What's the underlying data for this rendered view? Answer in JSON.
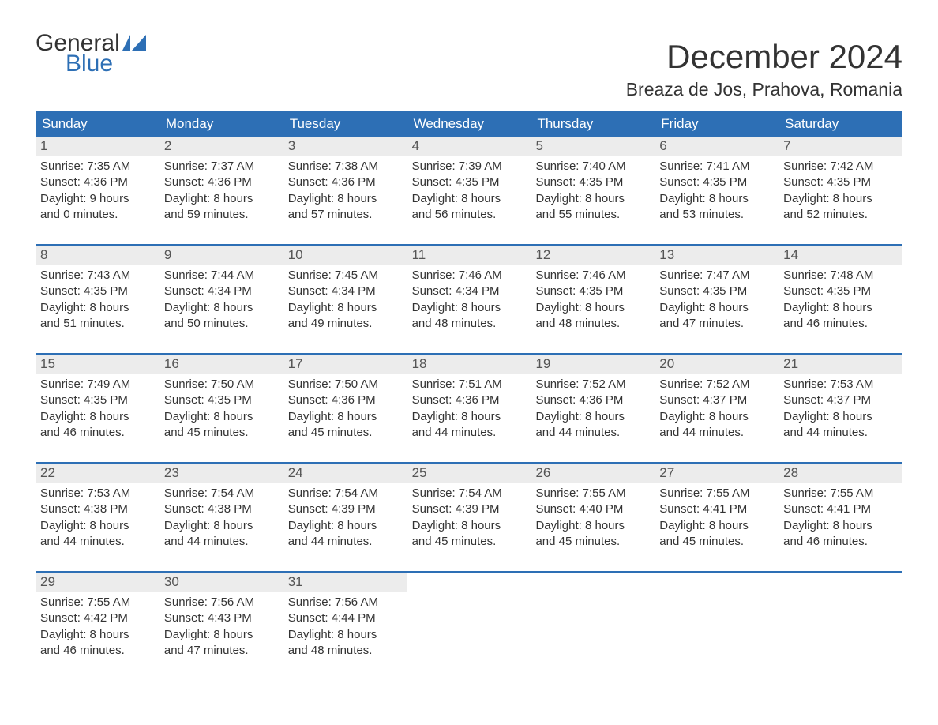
{
  "brand": {
    "line1": "General",
    "line2": "Blue"
  },
  "title": "December 2024",
  "location": "Breaza de Jos, Prahova, Romania",
  "colors": {
    "accent": "#2d6fb5",
    "header_text": "#ffffff",
    "daynum_bg": "#ececec",
    "text": "#333333",
    "background": "#ffffff"
  },
  "day_headers": [
    "Sunday",
    "Monday",
    "Tuesday",
    "Wednesday",
    "Thursday",
    "Friday",
    "Saturday"
  ],
  "weeks": [
    [
      {
        "n": "1",
        "sr": "Sunrise: 7:35 AM",
        "ss": "Sunset: 4:36 PM",
        "d1": "Daylight: 9 hours",
        "d2": "and 0 minutes."
      },
      {
        "n": "2",
        "sr": "Sunrise: 7:37 AM",
        "ss": "Sunset: 4:36 PM",
        "d1": "Daylight: 8 hours",
        "d2": "and 59 minutes."
      },
      {
        "n": "3",
        "sr": "Sunrise: 7:38 AM",
        "ss": "Sunset: 4:36 PM",
        "d1": "Daylight: 8 hours",
        "d2": "and 57 minutes."
      },
      {
        "n": "4",
        "sr": "Sunrise: 7:39 AM",
        "ss": "Sunset: 4:35 PM",
        "d1": "Daylight: 8 hours",
        "d2": "and 56 minutes."
      },
      {
        "n": "5",
        "sr": "Sunrise: 7:40 AM",
        "ss": "Sunset: 4:35 PM",
        "d1": "Daylight: 8 hours",
        "d2": "and 55 minutes."
      },
      {
        "n": "6",
        "sr": "Sunrise: 7:41 AM",
        "ss": "Sunset: 4:35 PM",
        "d1": "Daylight: 8 hours",
        "d2": "and 53 minutes."
      },
      {
        "n": "7",
        "sr": "Sunrise: 7:42 AM",
        "ss": "Sunset: 4:35 PM",
        "d1": "Daylight: 8 hours",
        "d2": "and 52 minutes."
      }
    ],
    [
      {
        "n": "8",
        "sr": "Sunrise: 7:43 AM",
        "ss": "Sunset: 4:35 PM",
        "d1": "Daylight: 8 hours",
        "d2": "and 51 minutes."
      },
      {
        "n": "9",
        "sr": "Sunrise: 7:44 AM",
        "ss": "Sunset: 4:34 PM",
        "d1": "Daylight: 8 hours",
        "d2": "and 50 minutes."
      },
      {
        "n": "10",
        "sr": "Sunrise: 7:45 AM",
        "ss": "Sunset: 4:34 PM",
        "d1": "Daylight: 8 hours",
        "d2": "and 49 minutes."
      },
      {
        "n": "11",
        "sr": "Sunrise: 7:46 AM",
        "ss": "Sunset: 4:34 PM",
        "d1": "Daylight: 8 hours",
        "d2": "and 48 minutes."
      },
      {
        "n": "12",
        "sr": "Sunrise: 7:46 AM",
        "ss": "Sunset: 4:35 PM",
        "d1": "Daylight: 8 hours",
        "d2": "and 48 minutes."
      },
      {
        "n": "13",
        "sr": "Sunrise: 7:47 AM",
        "ss": "Sunset: 4:35 PM",
        "d1": "Daylight: 8 hours",
        "d2": "and 47 minutes."
      },
      {
        "n": "14",
        "sr": "Sunrise: 7:48 AM",
        "ss": "Sunset: 4:35 PM",
        "d1": "Daylight: 8 hours",
        "d2": "and 46 minutes."
      }
    ],
    [
      {
        "n": "15",
        "sr": "Sunrise: 7:49 AM",
        "ss": "Sunset: 4:35 PM",
        "d1": "Daylight: 8 hours",
        "d2": "and 46 minutes."
      },
      {
        "n": "16",
        "sr": "Sunrise: 7:50 AM",
        "ss": "Sunset: 4:35 PM",
        "d1": "Daylight: 8 hours",
        "d2": "and 45 minutes."
      },
      {
        "n": "17",
        "sr": "Sunrise: 7:50 AM",
        "ss": "Sunset: 4:36 PM",
        "d1": "Daylight: 8 hours",
        "d2": "and 45 minutes."
      },
      {
        "n": "18",
        "sr": "Sunrise: 7:51 AM",
        "ss": "Sunset: 4:36 PM",
        "d1": "Daylight: 8 hours",
        "d2": "and 44 minutes."
      },
      {
        "n": "19",
        "sr": "Sunrise: 7:52 AM",
        "ss": "Sunset: 4:36 PM",
        "d1": "Daylight: 8 hours",
        "d2": "and 44 minutes."
      },
      {
        "n": "20",
        "sr": "Sunrise: 7:52 AM",
        "ss": "Sunset: 4:37 PM",
        "d1": "Daylight: 8 hours",
        "d2": "and 44 minutes."
      },
      {
        "n": "21",
        "sr": "Sunrise: 7:53 AM",
        "ss": "Sunset: 4:37 PM",
        "d1": "Daylight: 8 hours",
        "d2": "and 44 minutes."
      }
    ],
    [
      {
        "n": "22",
        "sr": "Sunrise: 7:53 AM",
        "ss": "Sunset: 4:38 PM",
        "d1": "Daylight: 8 hours",
        "d2": "and 44 minutes."
      },
      {
        "n": "23",
        "sr": "Sunrise: 7:54 AM",
        "ss": "Sunset: 4:38 PM",
        "d1": "Daylight: 8 hours",
        "d2": "and 44 minutes."
      },
      {
        "n": "24",
        "sr": "Sunrise: 7:54 AM",
        "ss": "Sunset: 4:39 PM",
        "d1": "Daylight: 8 hours",
        "d2": "and 44 minutes."
      },
      {
        "n": "25",
        "sr": "Sunrise: 7:54 AM",
        "ss": "Sunset: 4:39 PM",
        "d1": "Daylight: 8 hours",
        "d2": "and 45 minutes."
      },
      {
        "n": "26",
        "sr": "Sunrise: 7:55 AM",
        "ss": "Sunset: 4:40 PM",
        "d1": "Daylight: 8 hours",
        "d2": "and 45 minutes."
      },
      {
        "n": "27",
        "sr": "Sunrise: 7:55 AM",
        "ss": "Sunset: 4:41 PM",
        "d1": "Daylight: 8 hours",
        "d2": "and 45 minutes."
      },
      {
        "n": "28",
        "sr": "Sunrise: 7:55 AM",
        "ss": "Sunset: 4:41 PM",
        "d1": "Daylight: 8 hours",
        "d2": "and 46 minutes."
      }
    ],
    [
      {
        "n": "29",
        "sr": "Sunrise: 7:55 AM",
        "ss": "Sunset: 4:42 PM",
        "d1": "Daylight: 8 hours",
        "d2": "and 46 minutes."
      },
      {
        "n": "30",
        "sr": "Sunrise: 7:56 AM",
        "ss": "Sunset: 4:43 PM",
        "d1": "Daylight: 8 hours",
        "d2": "and 47 minutes."
      },
      {
        "n": "31",
        "sr": "Sunrise: 7:56 AM",
        "ss": "Sunset: 4:44 PM",
        "d1": "Daylight: 8 hours",
        "d2": "and 48 minutes."
      },
      null,
      null,
      null,
      null
    ]
  ]
}
